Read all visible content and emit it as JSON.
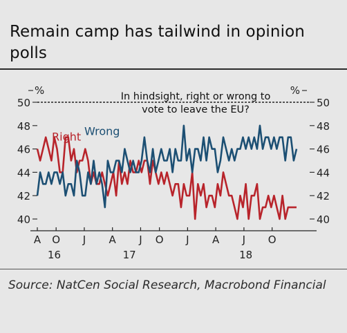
{
  "title": "Remain camp has tailwind in opinion polls",
  "source": "Source: NatCen Social Research, Macrobond Financial",
  "colors": {
    "right": "#b8242b",
    "wrong": "#1c4f73",
    "axis": "#333333",
    "background": "#e7e7e7"
  },
  "chart_data": {
    "type": "line",
    "title": "In hindsight, right or wrong to vote to leave the EU?",
    "left_unit": "%",
    "right_unit": "%",
    "ylim": [
      39,
      51
    ],
    "yticks": [
      40,
      42,
      44,
      46,
      48,
      50
    ],
    "reference_line": 50,
    "x_tick_labels": [
      "A",
      "O",
      "J",
      "A",
      "J",
      "O",
      "J",
      "A",
      "J",
      "O"
    ],
    "x_tick_positions": [
      0,
      2,
      5,
      8,
      11,
      13,
      16,
      19,
      22,
      25
    ],
    "year_labels": [
      "16",
      "17",
      "18"
    ],
    "year_positions": [
      1.8,
      9.8,
      22.2
    ],
    "x_range": [
      0,
      29
    ],
    "series": [
      {
        "name": "Right",
        "x": [
          0,
          0.3,
          0.6,
          0.9,
          1.2,
          1.5,
          1.8,
          2.1,
          2.4,
          2.7,
          3.0,
          3.3,
          3.6,
          3.9,
          4.2,
          4.5,
          4.8,
          5.1,
          5.4,
          5.7,
          6.0,
          6.3,
          6.6,
          6.9,
          7.2,
          7.5,
          7.8,
          8.1,
          8.4,
          8.7,
          9.0,
          9.3,
          9.6,
          9.9,
          10.2,
          10.5,
          10.8,
          11.1,
          11.4,
          11.7,
          12.0,
          12.3,
          12.6,
          12.9,
          13.2,
          13.5,
          13.8,
          14.1,
          14.4,
          14.7,
          15.0,
          15.3,
          15.6,
          15.9,
          16.2,
          16.5,
          16.8,
          17.1,
          17.4,
          17.7,
          18.0,
          18.3,
          18.6,
          18.9,
          19.2,
          19.5,
          19.8,
          20.1,
          20.4,
          20.7,
          21.0,
          21.3,
          21.6,
          21.9,
          22.2,
          22.5,
          22.8,
          23.1,
          23.4,
          23.7,
          24.0,
          24.3,
          24.6,
          24.9,
          25.2,
          25.5,
          25.8,
          26.1,
          26.4,
          26.7,
          27.0,
          27.3,
          27.6
        ],
        "values": [
          46,
          45,
          46,
          47,
          46,
          45,
          47,
          46,
          44,
          44,
          47,
          47,
          45,
          46,
          44,
          45,
          45,
          46,
          45,
          43,
          44,
          43,
          43,
          44,
          43,
          42,
          43,
          44,
          42,
          45,
          43,
          44,
          43,
          45,
          44,
          44,
          45,
          44,
          45,
          45,
          43,
          45,
          44,
          43,
          44,
          43,
          44,
          43,
          42,
          43,
          43,
          41,
          43,
          42,
          42,
          44,
          40,
          43,
          42,
          43,
          41,
          42,
          42,
          41,
          43,
          42,
          44,
          43,
          42,
          42,
          41,
          40,
          42,
          41,
          43,
          40,
          42,
          42,
          43,
          40,
          41,
          41,
          42,
          41,
          42,
          41,
          40,
          42,
          40,
          41,
          41,
          41,
          41
        ]
      },
      {
        "name": "Wrong",
        "x": [
          0,
          0.3,
          0.6,
          0.9,
          1.2,
          1.5,
          1.8,
          2.1,
          2.4,
          2.7,
          3.0,
          3.3,
          3.6,
          3.9,
          4.2,
          4.5,
          4.8,
          5.1,
          5.4,
          5.7,
          6.0,
          6.3,
          6.6,
          6.9,
          7.2,
          7.5,
          7.8,
          8.1,
          8.4,
          8.7,
          9.0,
          9.3,
          9.6,
          9.9,
          10.2,
          10.5,
          10.8,
          11.1,
          11.4,
          11.7,
          12.0,
          12.3,
          12.6,
          12.9,
          13.2,
          13.5,
          13.8,
          14.1,
          14.4,
          14.7,
          15.0,
          15.3,
          15.6,
          15.9,
          16.2,
          16.5,
          16.8,
          17.1,
          17.4,
          17.7,
          18.0,
          18.3,
          18.6,
          18.9,
          19.2,
          19.5,
          19.8,
          20.1,
          20.4,
          20.7,
          21.0,
          21.3,
          21.6,
          21.9,
          22.2,
          22.5,
          22.8,
          23.1,
          23.4,
          23.7,
          24.0,
          24.3,
          24.6,
          24.9,
          25.2,
          25.5,
          25.8,
          26.1,
          26.4,
          26.7,
          27.0,
          27.3,
          27.6
        ],
        "values": [
          42,
          44,
          43,
          43,
          44,
          43,
          44,
          44,
          43,
          44,
          42,
          43,
          43,
          42,
          45,
          44,
          42,
          42,
          44,
          43,
          45,
          43,
          44,
          43,
          41,
          45,
          44,
          44,
          45,
          45,
          44,
          46,
          45,
          44,
          45,
          44,
          44,
          45,
          47,
          45,
          44,
          46,
          44,
          45,
          46,
          45,
          45,
          46,
          44,
          46,
          45,
          45,
          48,
          45,
          46,
          44,
          46,
          46,
          45,
          47,
          45,
          47,
          46,
          46,
          44,
          45,
          47,
          46,
          45,
          46,
          45,
          46,
          46,
          47,
          46,
          47,
          46,
          47,
          46,
          48,
          46,
          47,
          47,
          46,
          47,
          46,
          47,
          47,
          45,
          47,
          47,
          45,
          46
        ]
      }
    ],
    "series_label_positions": {
      "Right": [
        3.1,
        47.0
      ],
      "Wrong": [
        6.9,
        47.5
      ]
    }
  }
}
